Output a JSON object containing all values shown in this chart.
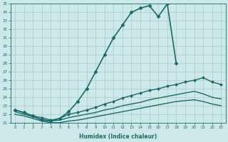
{
  "xlabel": "Humidex (Indice chaleur)",
  "bg_color": "#cde8e8",
  "grid_color": "#b0d0d0",
  "line_color": "#1a6b6b",
  "xlim": [
    -0.5,
    23.5
  ],
  "ylim": [
    21,
    35
  ],
  "xticks": [
    0,
    1,
    2,
    3,
    4,
    5,
    6,
    7,
    8,
    9,
    10,
    11,
    12,
    13,
    14,
    15,
    16,
    17,
    18,
    19,
    20,
    21,
    22,
    23
  ],
  "yticks": [
    21,
    22,
    23,
    24,
    25,
    26,
    27,
    28,
    29,
    30,
    31,
    32,
    33,
    34,
    35
  ],
  "lines": [
    {
      "x": [
        0,
        1,
        2,
        3,
        4,
        5,
        6,
        7,
        8,
        9,
        10,
        11,
        12,
        13,
        14,
        15,
        16,
        17,
        18
      ],
      "y": [
        22.5,
        22.2,
        21.8,
        21.3,
        21.2,
        21.5,
        22.3,
        23.5,
        25.0,
        27.0,
        29.0,
        31.0,
        32.5,
        34.0,
        34.5,
        34.8,
        33.5,
        35.0,
        28.0
      ],
      "marker": "D",
      "markersize": 2.5,
      "linewidth": 1.2
    },
    {
      "x": [
        0,
        1,
        2,
        3,
        4,
        5,
        6,
        7,
        8,
        9,
        10,
        11,
        12,
        13,
        14,
        15,
        16,
        17,
        18,
        19,
        20,
        21,
        22,
        23
      ],
      "y": [
        22.5,
        22.2,
        21.8,
        21.6,
        21.3,
        21.5,
        22.0,
        22.2,
        22.5,
        22.8,
        23.2,
        23.5,
        23.9,
        24.2,
        24.5,
        24.8,
        25.0,
        25.3,
        25.5,
        25.8,
        26.0,
        26.3,
        25.8,
        25.5
      ],
      "marker": "D",
      "markersize": 2.0,
      "linewidth": 1.0
    },
    {
      "x": [
        0,
        1,
        2,
        3,
        4,
        5,
        6,
        7,
        8,
        9,
        10,
        11,
        12,
        13,
        14,
        15,
        16,
        17,
        18,
        19,
        20,
        21,
        22,
        23
      ],
      "y": [
        22.3,
        22.0,
        21.7,
        21.4,
        21.2,
        21.3,
        21.6,
        21.8,
        22.0,
        22.2,
        22.5,
        22.7,
        23.0,
        23.2,
        23.4,
        23.7,
        23.9,
        24.1,
        24.3,
        24.5,
        24.7,
        24.4,
        24.0,
        23.8
      ],
      "marker": null,
      "markersize": 0,
      "linewidth": 1.0
    },
    {
      "x": [
        0,
        1,
        2,
        3,
        4,
        5,
        6,
        7,
        8,
        9,
        10,
        11,
        12,
        13,
        14,
        15,
        16,
        17,
        18,
        19,
        20,
        21,
        22,
        23
      ],
      "y": [
        22.0,
        21.8,
        21.5,
        21.2,
        21.0,
        21.0,
        21.2,
        21.3,
        21.5,
        21.7,
        21.9,
        22.1,
        22.3,
        22.5,
        22.7,
        22.9,
        23.1,
        23.3,
        23.5,
        23.6,
        23.7,
        23.5,
        23.2,
        23.0
      ],
      "marker": null,
      "markersize": 0,
      "linewidth": 1.0
    }
  ]
}
